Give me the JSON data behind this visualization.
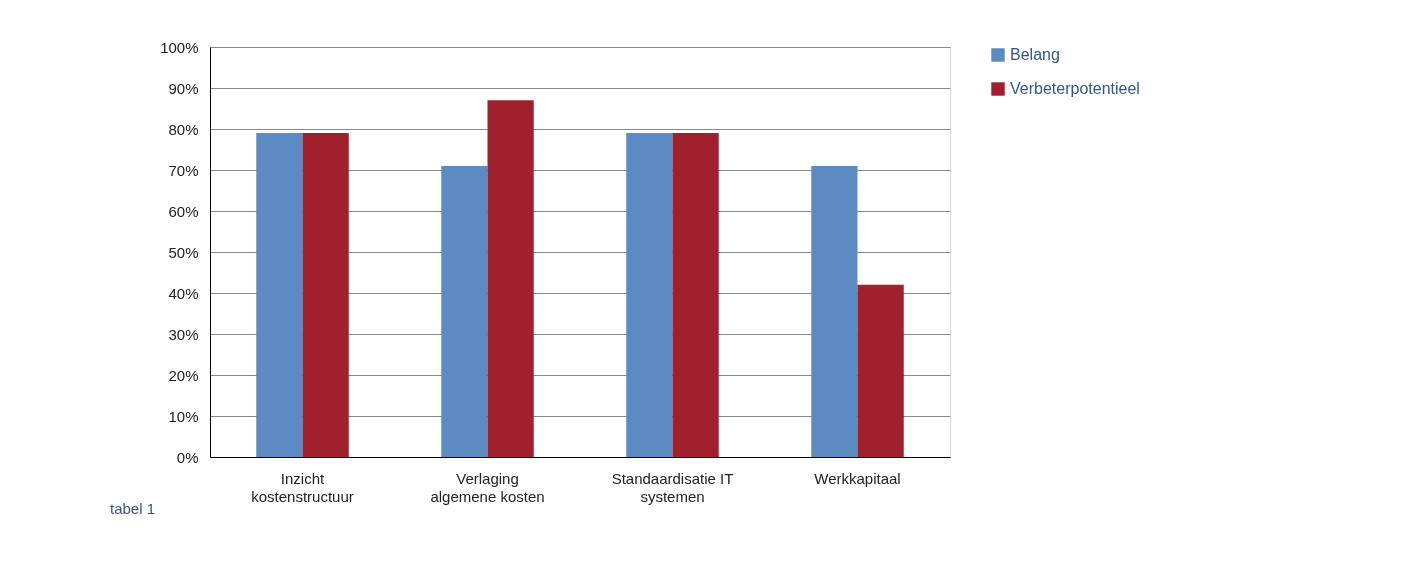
{
  "chart_data": {
    "type": "bar",
    "categories": [
      "Inzicht\nkostenstructuur",
      "Verlaging\nalgemene kosten",
      "Standaardisatie IT\nsystemen",
      "Werkkapitaal"
    ],
    "series": [
      {
        "name": "Belang",
        "color": "#5b8bc2",
        "values": [
          79,
          71,
          79,
          71
        ]
      },
      {
        "name": "Verbeterpotentieel",
        "color": "#a0202d",
        "values": [
          79,
          87,
          79,
          42
        ]
      }
    ],
    "ylim": [
      0,
      100
    ],
    "yticks": [
      {
        "value": 0,
        "label": "0%"
      },
      {
        "value": 10,
        "label": "10%"
      },
      {
        "value": 20,
        "label": "20%"
      },
      {
        "value": 30,
        "label": "30%"
      },
      {
        "value": 40,
        "label": "40%"
      },
      {
        "value": 50,
        "label": "50%"
      },
      {
        "value": 60,
        "label": "60%"
      },
      {
        "value": 70,
        "label": "70%"
      },
      {
        "value": 80,
        "label": "80%"
      },
      {
        "value": 90,
        "label": "90%"
      },
      {
        "value": 100,
        "label": "100%"
      }
    ],
    "grid": "y",
    "legend": "top right",
    "annotations": [
      "tabel 1"
    ]
  }
}
